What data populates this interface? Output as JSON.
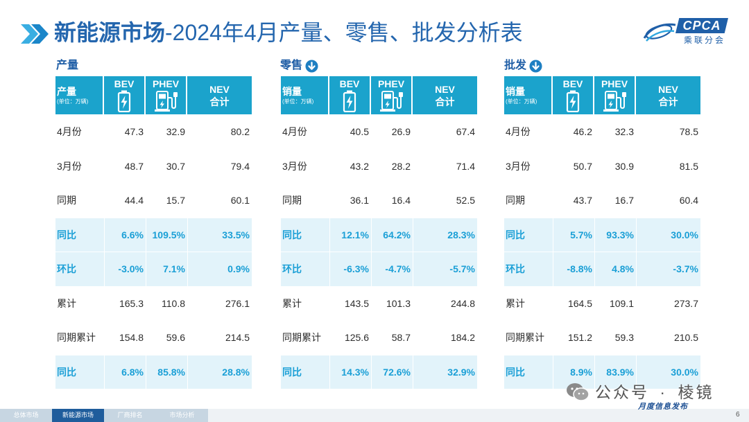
{
  "title": {
    "bold": "新能源市场",
    "rest": "-2024年4月产量、零售、批发分析表",
    "icon": "double-chevron-right-icon"
  },
  "logo": {
    "mark": "CPCA",
    "name": "乘联分会",
    "icon": "cpca-swoosh-icon"
  },
  "colors": {
    "title": "#2466ae",
    "header_bg": "#1ba3cc",
    "emphasis_bg": "#e2f3fa",
    "emphasis_text": "#1a9fd6",
    "footer_active": "#1f5d9c",
    "brand": "#1f5fa8"
  },
  "tables": [
    {
      "section_label": "产量",
      "header": {
        "metric": "产量",
        "unit": "(单位：万辆)",
        "bev": "BEV",
        "bev_icon": "battery-icon",
        "phev": "PHEV",
        "phev_icon": "charging-station-icon",
        "nev": "NEV",
        "nev_sub": "合计"
      },
      "rows": [
        {
          "label": "4月份",
          "bev": "47.3",
          "phev": "32.9",
          "nev": "80.2",
          "emphasis": false
        },
        {
          "label": "3月份",
          "bev": "48.7",
          "phev": "30.7",
          "nev": "79.4",
          "emphasis": false
        },
        {
          "label": "同期",
          "bev": "44.4",
          "phev": "15.7",
          "nev": "60.1",
          "emphasis": false
        },
        {
          "label": "同比",
          "bev": "6.6%",
          "phev": "109.5%",
          "nev": "33.5%",
          "emphasis": true
        },
        {
          "label": "环比",
          "bev": "-3.0%",
          "phev": "7.1%",
          "nev": "0.9%",
          "emphasis": true
        },
        {
          "label": "累计",
          "bev": "165.3",
          "phev": "110.8",
          "nev": "276.1",
          "emphasis": false
        },
        {
          "label": "同期累计",
          "bev": "154.8",
          "phev": "59.6",
          "nev": "214.5",
          "emphasis": false
        },
        {
          "label": "同比",
          "bev": "6.8%",
          "phev": "85.8%",
          "nev": "28.8%",
          "emphasis": true
        }
      ]
    },
    {
      "section_label": "零售",
      "section_icon": "arrow-down-circle-icon",
      "header": {
        "metric": "销量",
        "unit": "(单位：万辆)",
        "bev": "BEV",
        "bev_icon": "battery-icon",
        "phev": "PHEV",
        "phev_icon": "charging-station-icon",
        "nev": "NEV",
        "nev_sub": "合计"
      },
      "rows": [
        {
          "label": "4月份",
          "bev": "40.5",
          "phev": "26.9",
          "nev": "67.4",
          "emphasis": false
        },
        {
          "label": "3月份",
          "bev": "43.2",
          "phev": "28.2",
          "nev": "71.4",
          "emphasis": false
        },
        {
          "label": "同期",
          "bev": "36.1",
          "phev": "16.4",
          "nev": "52.5",
          "emphasis": false
        },
        {
          "label": "同比",
          "bev": "12.1%",
          "phev": "64.2%",
          "nev": "28.3%",
          "emphasis": true
        },
        {
          "label": "环比",
          "bev": "-6.3%",
          "phev": "-4.7%",
          "nev": "-5.7%",
          "emphasis": true
        },
        {
          "label": "累计",
          "bev": "143.5",
          "phev": "101.3",
          "nev": "244.8",
          "emphasis": false
        },
        {
          "label": "同期累计",
          "bev": "125.6",
          "phev": "58.7",
          "nev": "184.2",
          "emphasis": false
        },
        {
          "label": "同比",
          "bev": "14.3%",
          "phev": "72.6%",
          "nev": "32.9%",
          "emphasis": true
        }
      ]
    },
    {
      "section_label": "批发",
      "section_icon": "arrow-down-circle-icon",
      "header": {
        "metric": "销量",
        "unit": "(单位：万辆)",
        "bev": "BEV",
        "bev_icon": "battery-icon",
        "phev": "PHEV",
        "phev_icon": "charging-station-icon",
        "nev": "NEV",
        "nev_sub": "合计"
      },
      "rows": [
        {
          "label": "4月份",
          "bev": "46.2",
          "phev": "32.3",
          "nev": "78.5",
          "emphasis": false
        },
        {
          "label": "3月份",
          "bev": "50.7",
          "phev": "30.9",
          "nev": "81.5",
          "emphasis": false
        },
        {
          "label": "同期",
          "bev": "43.7",
          "phev": "16.7",
          "nev": "60.4",
          "emphasis": false
        },
        {
          "label": "同比",
          "bev": "5.7%",
          "phev": "93.3%",
          "nev": "30.0%",
          "emphasis": true
        },
        {
          "label": "环比",
          "bev": "-8.8%",
          "phev": "4.8%",
          "nev": "-3.7%",
          "emphasis": true
        },
        {
          "label": "累计",
          "bev": "164.5",
          "phev": "109.1",
          "nev": "273.7",
          "emphasis": false
        },
        {
          "label": "同期累计",
          "bev": "151.2",
          "phev": "59.3",
          "nev": "210.5",
          "emphasis": false
        },
        {
          "label": "同比",
          "bev": "8.9%",
          "phev": "83.9%",
          "nev": "30.0%",
          "emphasis": true
        }
      ]
    }
  ],
  "watermark": {
    "text": "公众号 · 棱镜",
    "icon": "wechat-icon"
  },
  "footer": {
    "tabs": [
      {
        "label": "总体市场",
        "active": false
      },
      {
        "label": "新能源市场",
        "active": true
      },
      {
        "label": "厂商排名",
        "active": false
      },
      {
        "label": "市场分析",
        "active": false
      }
    ],
    "tagline": "月度信息发布",
    "page": "6"
  }
}
